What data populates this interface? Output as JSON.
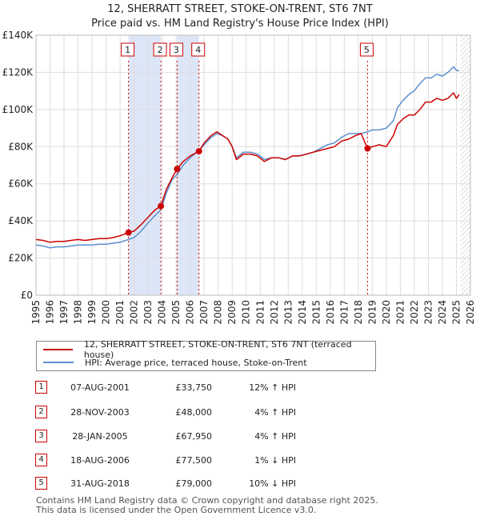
{
  "title_line1": "12, SHERRATT STREET, STOKE-ON-TRENT, ST6 7NT",
  "title_line2": "Price paid vs. HM Land Registry's House Price Index (HPI)",
  "legend": {
    "property": "12, SHERRATT STREET, STOKE-ON-TRENT, ST6 7NT (terraced house)",
    "hpi": "HPI: Average price, terraced house, Stoke-on-Trent"
  },
  "colors": {
    "property": "#cc0000",
    "hpi": "#5b8fd0",
    "shade": "#dde6f7",
    "grid": "#dddddd"
  },
  "sales": [
    {
      "num": "1",
      "date": "07-AUG-2001",
      "price": "£33,750",
      "hpi": "12% ↑ HPI"
    },
    {
      "num": "2",
      "date": "28-NOV-2003",
      "price": "£48,000",
      "hpi": "4% ↑ HPI"
    },
    {
      "num": "3",
      "date": "28-JAN-2005",
      "price": "£67,950",
      "hpi": "4% ↑ HPI"
    },
    {
      "num": "4",
      "date": "18-AUG-2006",
      "price": "£77,500",
      "hpi": "1% ↓ HPI"
    },
    {
      "num": "5",
      "date": "31-AUG-2018",
      "price": "£79,000",
      "hpi": "10% ↓ HPI"
    }
  ],
  "footer_line1": "Contains HM Land Registry data © Crown copyright and database right 2025.",
  "footer_line2": "This data is licensed under the Open Government Licence v3.0.",
  "chart_data": {
    "type": "line",
    "title": "12, SHERRATT STREET, STOKE-ON-TRENT, ST6 7NT",
    "subtitle": "Price paid vs. HM Land Registry's House Price Index (HPI)",
    "xlabel": "",
    "ylabel": "",
    "xlim": [
      1995,
      2026
    ],
    "ylim": [
      0,
      140000
    ],
    "x_ticks": [
      1995,
      1996,
      1997,
      1998,
      1999,
      2000,
      2001,
      2002,
      2003,
      2004,
      2005,
      2006,
      2007,
      2008,
      2009,
      2010,
      2011,
      2012,
      2013,
      2014,
      2015,
      2016,
      2017,
      2018,
      2019,
      2020,
      2021,
      2022,
      2023,
      2024,
      2025,
      2026
    ],
    "y_ticks": [
      0,
      20000,
      40000,
      60000,
      80000,
      100000,
      120000,
      140000
    ],
    "y_tick_labels": [
      "£0",
      "£20K",
      "£40K",
      "£60K",
      "£80K",
      "£100K",
      "£120K",
      "£140K"
    ],
    "grid": true,
    "legend_position": "below",
    "shaded_ranges": [
      [
        2001.6,
        2003.9
      ],
      [
        2005.07,
        2006.63
      ]
    ],
    "hatched_from": 2025.3,
    "series": [
      {
        "name": "12, SHERRATT STREET, STOKE-ON-TRENT, ST6 7NT (terraced house)",
        "x": [
          1995.0,
          1995.5,
          1996.0,
          1996.5,
          1997.0,
          1997.5,
          1998.0,
          1998.5,
          1999.0,
          1999.5,
          2000.0,
          2000.5,
          2001.0,
          2001.6,
          2002.0,
          2002.5,
          2003.0,
          2003.5,
          2003.91,
          2004.3,
          2004.7,
          2005.07,
          2005.5,
          2006.0,
          2006.63,
          2007.0,
          2007.5,
          2007.9,
          2008.3,
          2008.7,
          2009.0,
          2009.3,
          2009.8,
          2010.3,
          2010.8,
          2011.3,
          2011.8,
          2012.3,
          2012.8,
          2013.3,
          2013.8,
          2014.3,
          2014.8,
          2015.3,
          2015.8,
          2016.3,
          2016.8,
          2017.3,
          2017.8,
          2018.2,
          2018.66,
          2019.0,
          2019.5,
          2020.0,
          2020.5,
          2020.8,
          2021.2,
          2021.6,
          2022.0,
          2022.4,
          2022.8,
          2023.2,
          2023.6,
          2024.0,
          2024.4,
          2024.8,
          2025.0,
          2025.2
        ],
        "y": [
          30000,
          29500,
          28500,
          29000,
          29000,
          29500,
          30000,
          29500,
          30000,
          30500,
          30500,
          31000,
          32000,
          33750,
          34500,
          38000,
          42000,
          46000,
          48000,
          57000,
          63000,
          67950,
          72000,
          75000,
          77500,
          82000,
          86000,
          88000,
          86000,
          84000,
          80000,
          73000,
          76000,
          76000,
          75000,
          72000,
          74000,
          74000,
          73000,
          75000,
          75000,
          76000,
          77000,
          78000,
          79000,
          80000,
          83000,
          84000,
          86000,
          87000,
          79000,
          80000,
          81000,
          80000,
          86000,
          92000,
          95000,
          97000,
          97000,
          100000,
          104000,
          104000,
          106000,
          105000,
          106000,
          109000,
          106000,
          108000
        ]
      },
      {
        "name": "HPI: Average price, terraced house, Stoke-on-Trent",
        "x": [
          1995.0,
          1995.5,
          1996.0,
          1996.5,
          1997.0,
          1997.5,
          1998.0,
          1998.5,
          1999.0,
          1999.5,
          2000.0,
          2000.5,
          2001.0,
          2001.6,
          2002.0,
          2002.5,
          2003.0,
          2003.5,
          2003.91,
          2004.3,
          2004.7,
          2005.07,
          2005.5,
          2006.0,
          2006.63,
          2007.0,
          2007.5,
          2007.9,
          2008.3,
          2008.7,
          2009.0,
          2009.3,
          2009.8,
          2010.3,
          2010.8,
          2011.3,
          2011.8,
          2012.3,
          2012.8,
          2013.3,
          2013.8,
          2014.3,
          2014.8,
          2015.3,
          2015.8,
          2016.3,
          2016.8,
          2017.3,
          2017.8,
          2018.2,
          2018.66,
          2019.0,
          2019.5,
          2020.0,
          2020.5,
          2020.8,
          2021.2,
          2021.6,
          2022.0,
          2022.4,
          2022.8,
          2023.2,
          2023.6,
          2024.0,
          2024.4,
          2024.8,
          2025.0,
          2025.2
        ],
        "y": [
          27000,
          26500,
          25500,
          26000,
          26000,
          26500,
          27000,
          27000,
          27000,
          27500,
          27500,
          28000,
          28500,
          30000,
          31000,
          34500,
          39000,
          43000,
          46000,
          55000,
          62000,
          65000,
          70000,
          74000,
          78000,
          81000,
          85000,
          87000,
          86000,
          84000,
          80000,
          74000,
          77000,
          77000,
          76000,
          73000,
          74000,
          74000,
          73000,
          75000,
          75000,
          76000,
          77000,
          79000,
          81000,
          82000,
          85000,
          87000,
          87000,
          87000,
          88000,
          89000,
          89000,
          90000,
          94000,
          101000,
          105000,
          108000,
          110000,
          114000,
          117000,
          117000,
          119000,
          118000,
          120000,
          123000,
          121000,
          121000
        ]
      }
    ],
    "sale_markers": [
      {
        "label": "1",
        "x": 2001.6,
        "y": 33750
      },
      {
        "label": "2",
        "x": 2003.91,
        "y": 48000
      },
      {
        "label": "3",
        "x": 2005.07,
        "y": 67950
      },
      {
        "label": "4",
        "x": 2006.63,
        "y": 77500
      },
      {
        "label": "5",
        "x": 2018.66,
        "y": 79000
      }
    ]
  }
}
